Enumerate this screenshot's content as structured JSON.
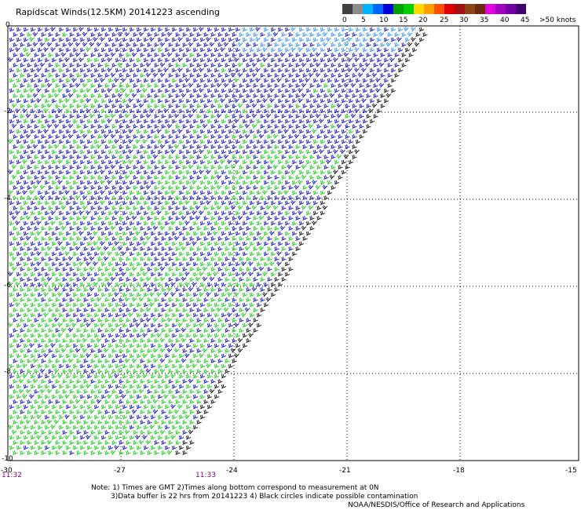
{
  "title": "Rapidscat Winds(12.5KM) 20141223 ascending",
  "color_scale": {
    "swatches": [
      "#404040",
      "#8c8c8c",
      "#00b4ff",
      "#0064ff",
      "#0000d8",
      "#00a000",
      "#00d000",
      "#ffd800",
      "#ffa000",
      "#ff5000",
      "#e00000",
      "#a01010",
      "#8b4513",
      "#6b2a10",
      "#e000e0",
      "#a000c0",
      "#7000a0",
      "#400070"
    ],
    "labels": [
      "0",
      "5",
      "10",
      "15",
      "20",
      "25",
      "30",
      "35",
      "40",
      "45",
      ">50 knots"
    ]
  },
  "map": {
    "lat_labels": [
      "0",
      "-2",
      "-4",
      "-6",
      "-8",
      "-10"
    ],
    "lon_labels": [
      "-30",
      "-27",
      "-24",
      "-21",
      "-18",
      "-15"
    ],
    "time_labels": [
      "11:32",
      "11:33"
    ]
  },
  "notes": [
    "Note: 1) Times are GMT 2)Times along bottom correspond to measurement at 0N",
    "3)Data buffer is 22 hrs from 20141223 4) Black circles indicate possible contamination",
    "NOAA/NESDIS/Office of Research and Applications"
  ],
  "colors": {
    "blue": "#0000c8",
    "light_blue": "#1e8cff",
    "green": "#00cc00",
    "black": "#000000",
    "grid": "#000000"
  },
  "icons": [
    "wind-barb-icon"
  ]
}
